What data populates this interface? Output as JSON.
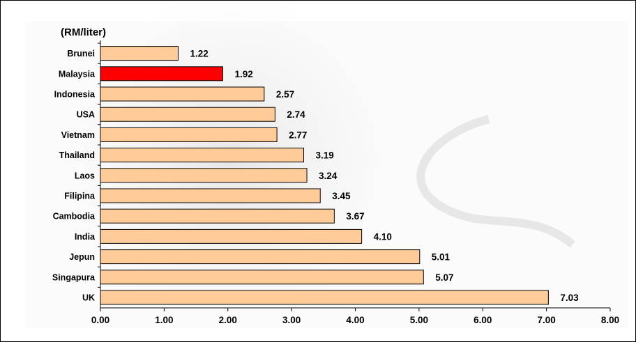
{
  "header": {
    "title": ""
  },
  "chart_data": {
    "type": "bar",
    "orientation": "horizontal",
    "unit_label": "(RM/liter)",
    "categories": [
      "Brunei",
      "Malaysia",
      "Indonesia",
      "USA",
      "Vietnam",
      "Thailand",
      "Laos",
      "Filipina",
      "Cambodia",
      "India",
      "Jepun",
      "Singapura",
      "UK"
    ],
    "values": [
      1.22,
      1.92,
      2.57,
      2.74,
      2.77,
      3.19,
      3.24,
      3.45,
      3.67,
      4.1,
      5.01,
      5.07,
      7.03
    ],
    "value_labels": [
      "1.22",
      "1.92",
      "2.57",
      "2.74",
      "2.77",
      "3.19",
      "3.24",
      "3.45",
      "3.67",
      "4.10",
      "5.01",
      "5.07",
      "7.03"
    ],
    "highlight": "Malaysia",
    "xlim": [
      0,
      8
    ],
    "xticks": [
      "0.00",
      "1.00",
      "2.00",
      "3.00",
      "4.00",
      "5.00",
      "6.00",
      "7.00",
      "8.00"
    ],
    "colors": {
      "bar": "#FFCC99",
      "highlight": "#FF0000",
      "outline": "#000000"
    },
    "grid": false
  }
}
